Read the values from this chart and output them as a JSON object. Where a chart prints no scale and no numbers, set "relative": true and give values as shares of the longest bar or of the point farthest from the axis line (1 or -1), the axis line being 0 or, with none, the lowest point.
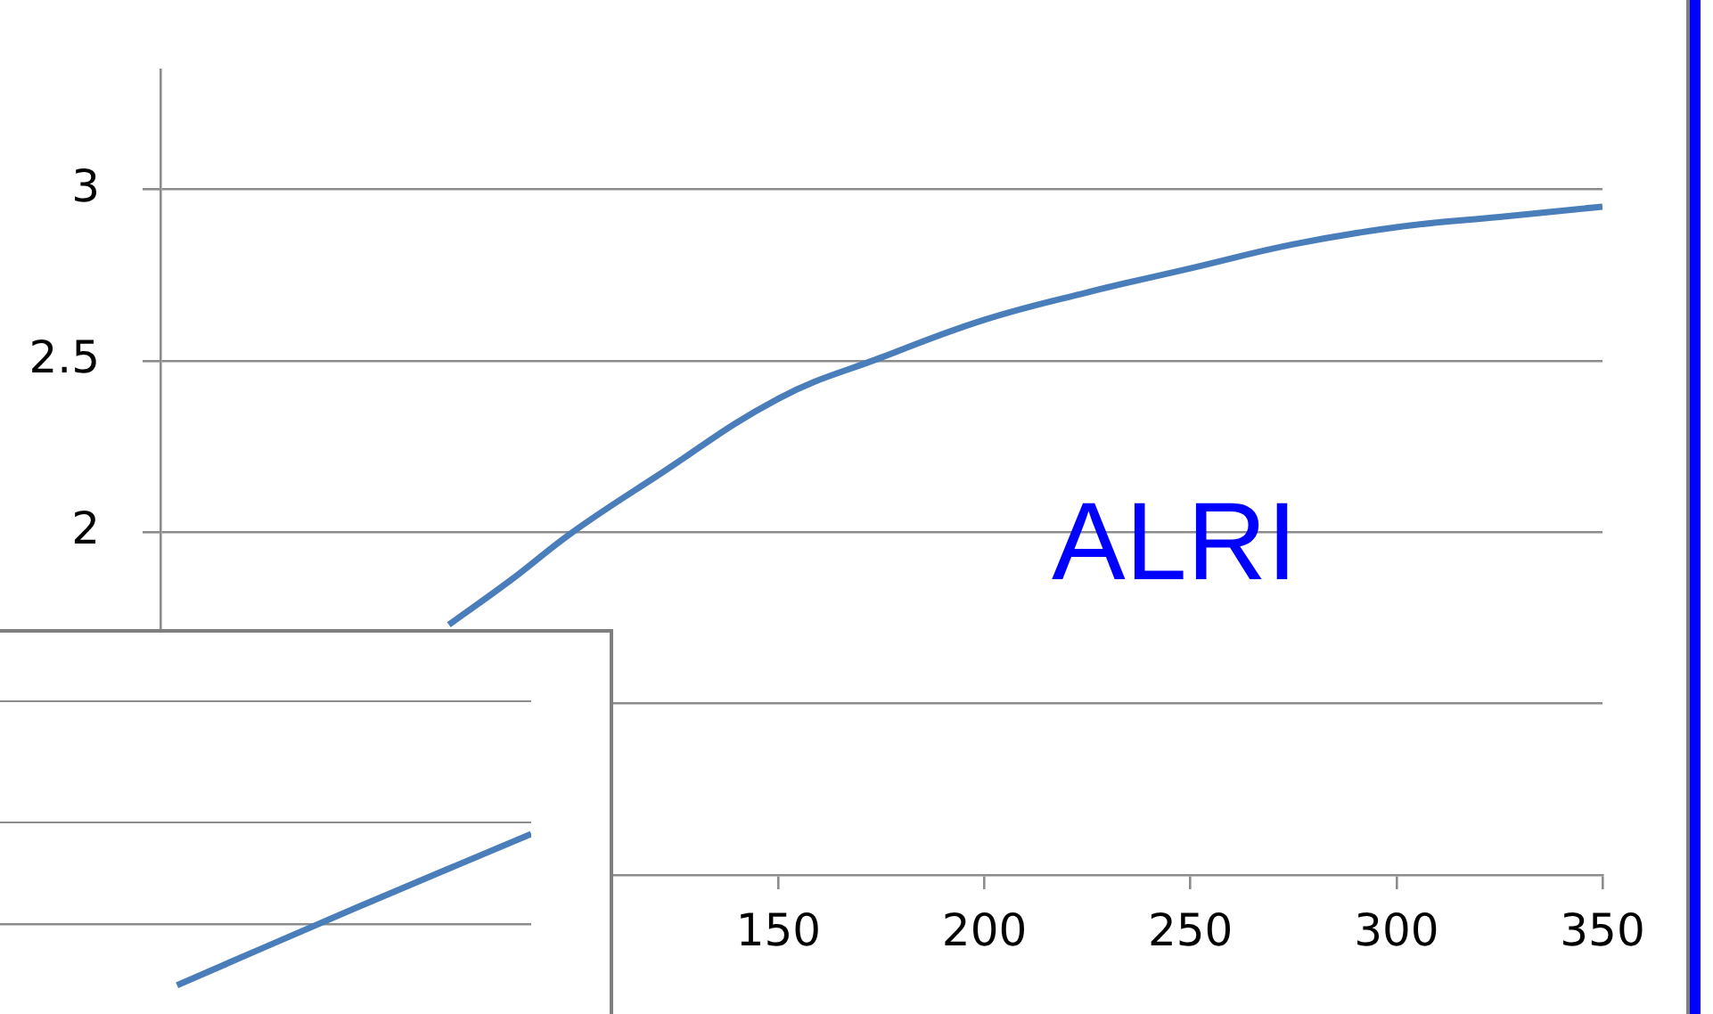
{
  "chart_data": [
    {
      "type": "line",
      "x": [
        70,
        85,
        100,
        120,
        150,
        175,
        200,
        225,
        250,
        275,
        300,
        325,
        350
      ],
      "series": [
        {
          "color": "#4a7ebb",
          "values": [
            1.73,
            1.86,
            2.0,
            2.16,
            2.39,
            2.51,
            2.62,
            2.7,
            2.77,
            2.84,
            2.89,
            2.92,
            2.95
          ]
        }
      ],
      "xlim": [
        0,
        350
      ],
      "xticks": [
        150,
        200,
        250,
        300,
        350
      ],
      "ylim": [
        1,
        3.35
      ],
      "yticks": [
        {
          "value": 1.5,
          "label": null
        },
        2,
        2.5,
        3
      ],
      "grid": "y",
      "legend": false,
      "marker": "none",
      "annotations": [
        "ALRI"
      ]
    },
    {
      "type": "line",
      "relative": true,
      "categories": [
        null,
        null,
        null,
        null
      ],
      "series": [
        {
          "color": "#4a7ebb",
          "values": [
            null,
            -0.68,
            0.17,
            1
          ]
        }
      ],
      "legend": false,
      "marker": "none"
    }
  ]
}
